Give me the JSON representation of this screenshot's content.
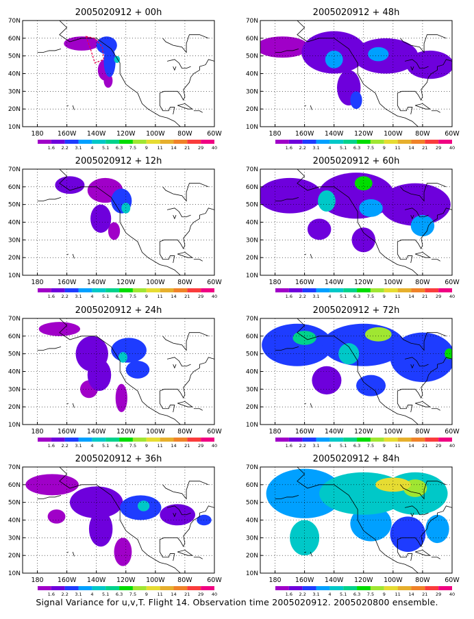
{
  "chart_data": [
    {
      "type": "heatmap",
      "title": "2005020912 + 00h",
      "ylim": [
        10,
        70
      ],
      "xlim": [
        -190,
        -60
      ],
      "y_ticks": [
        "10N",
        "20N",
        "30N",
        "40N",
        "50N",
        "60N",
        "70N"
      ],
      "x_ticks": [
        "180",
        "160W",
        "140W",
        "120W",
        "100W",
        "80W",
        "60W"
      ],
      "grid": true,
      "field": [
        {
          "lon": -150,
          "lat": 57,
          "value": 1.6,
          "rx": 12,
          "ry": 4
        },
        {
          "lon": -133,
          "lat": 56,
          "value": 3.1,
          "rx": 7,
          "ry": 5
        },
        {
          "lon": -131,
          "lat": 47,
          "value": 3.1,
          "rx": 4,
          "ry": 9
        },
        {
          "lon": -134,
          "lat": 42,
          "value": 1.6,
          "rx": 5,
          "ry": 6
        },
        {
          "lon": -132,
          "lat": 36,
          "value": 1.6,
          "rx": 3,
          "ry": 4
        },
        {
          "lon": -126,
          "lat": 48,
          "value": 5.1,
          "rx": 2,
          "ry": 2
        }
      ],
      "observation_region": {
        "color": "#e8004c",
        "points": [
          [
            -147,
            61
          ],
          [
            -141,
            60
          ],
          [
            -136,
            55
          ],
          [
            -135,
            48
          ],
          [
            -141,
            46
          ],
          [
            -144,
            54
          ]
        ]
      }
    },
    {
      "type": "heatmap",
      "title": "2005020912 + 12h",
      "ylim": [
        10,
        70
      ],
      "xlim": [
        -190,
        -60
      ],
      "y_ticks": [
        "10N",
        "20N",
        "30N",
        "40N",
        "50N",
        "60N",
        "70N"
      ],
      "x_ticks": [
        "180",
        "160W",
        "140W",
        "120W",
        "100W",
        "80W",
        "60W"
      ],
      "grid": true,
      "field": [
        {
          "lon": -158,
          "lat": 61,
          "value": 2.2,
          "rx": 10,
          "ry": 5
        },
        {
          "lon": -134,
          "lat": 58,
          "value": 1.6,
          "rx": 12,
          "ry": 7
        },
        {
          "lon": -123,
          "lat": 52,
          "value": 3.1,
          "rx": 7,
          "ry": 7
        },
        {
          "lon": -137,
          "lat": 42,
          "value": 2.2,
          "rx": 7,
          "ry": 8
        },
        {
          "lon": -128,
          "lat": 35,
          "value": 1.6,
          "rx": 4,
          "ry": 5
        },
        {
          "lon": -120,
          "lat": 48,
          "value": 5.1,
          "rx": 3,
          "ry": 3
        }
      ]
    },
    {
      "type": "heatmap",
      "title": "2005020912 + 24h",
      "ylim": [
        10,
        70
      ],
      "xlim": [
        -190,
        -60
      ],
      "y_ticks": [
        "10N",
        "20N",
        "30N",
        "40N",
        "50N",
        "60N",
        "70N"
      ],
      "x_ticks": [
        "180",
        "160W",
        "140W",
        "120W",
        "100W",
        "80W",
        "60W"
      ],
      "grid": true,
      "field": [
        {
          "lon": -165,
          "lat": 64,
          "value": 1.6,
          "rx": 14,
          "ry": 4
        },
        {
          "lon": -143,
          "lat": 50,
          "value": 2.2,
          "rx": 11,
          "ry": 10
        },
        {
          "lon": -118,
          "lat": 52,
          "value": 3.1,
          "rx": 12,
          "ry": 7
        },
        {
          "lon": -138,
          "lat": 38,
          "value": 2.2,
          "rx": 8,
          "ry": 9
        },
        {
          "lon": -112,
          "lat": 41,
          "value": 3.1,
          "rx": 8,
          "ry": 5
        },
        {
          "lon": -123,
          "lat": 25,
          "value": 1.6,
          "rx": 4,
          "ry": 8
        },
        {
          "lon": -145,
          "lat": 30,
          "value": 1.6,
          "rx": 6,
          "ry": 5
        },
        {
          "lon": -122,
          "lat": 48,
          "value": 5.1,
          "rx": 3,
          "ry": 3
        }
      ]
    },
    {
      "type": "heatmap",
      "title": "2005020912 + 36h",
      "ylim": [
        10,
        70
      ],
      "xlim": [
        -190,
        -60
      ],
      "y_ticks": [
        "10N",
        "20N",
        "30N",
        "40N",
        "50N",
        "60N",
        "70N"
      ],
      "x_ticks": [
        "180",
        "160W",
        "140W",
        "120W",
        "100W",
        "80W",
        "60W"
      ],
      "grid": true,
      "field": [
        {
          "lon": -170,
          "lat": 60,
          "value": 1.6,
          "rx": 18,
          "ry": 6
        },
        {
          "lon": -140,
          "lat": 50,
          "value": 2.2,
          "rx": 18,
          "ry": 9
        },
        {
          "lon": -110,
          "lat": 47,
          "value": 3.1,
          "rx": 14,
          "ry": 7
        },
        {
          "lon": -85,
          "lat": 43,
          "value": 2.2,
          "rx": 12,
          "ry": 6
        },
        {
          "lon": -137,
          "lat": 35,
          "value": 2.2,
          "rx": 8,
          "ry": 10
        },
        {
          "lon": -122,
          "lat": 22,
          "value": 1.6,
          "rx": 6,
          "ry": 8
        },
        {
          "lon": -167,
          "lat": 42,
          "value": 1.6,
          "rx": 6,
          "ry": 4
        },
        {
          "lon": -108,
          "lat": 48,
          "value": 5.1,
          "rx": 4,
          "ry": 3
        },
        {
          "lon": -67,
          "lat": 40,
          "value": 3.1,
          "rx": 5,
          "ry": 3
        }
      ]
    },
    {
      "type": "heatmap",
      "title": "2005020912 + 48h",
      "ylim": [
        10,
        70
      ],
      "xlim": [
        -190,
        -60
      ],
      "y_ticks": [
        "10N",
        "20N",
        "30N",
        "40N",
        "50N",
        "60N",
        "70N"
      ],
      "x_ticks": [
        "180",
        "160W",
        "140W",
        "120W",
        "100W",
        "80W",
        "60W"
      ],
      "grid": true,
      "field": [
        {
          "lon": -175,
          "lat": 55,
          "value": 1.6,
          "rx": 18,
          "ry": 6
        },
        {
          "lon": -140,
          "lat": 52,
          "value": 2.2,
          "rx": 22,
          "ry": 12
        },
        {
          "lon": -105,
          "lat": 50,
          "value": 2.2,
          "rx": 22,
          "ry": 10
        },
        {
          "lon": -75,
          "lat": 45,
          "value": 2.2,
          "rx": 16,
          "ry": 8
        },
        {
          "lon": -130,
          "lat": 32,
          "value": 2.2,
          "rx": 8,
          "ry": 10
        },
        {
          "lon": -140,
          "lat": 48,
          "value": 4.0,
          "rx": 6,
          "ry": 5
        },
        {
          "lon": -110,
          "lat": 51,
          "value": 4.0,
          "rx": 7,
          "ry": 4
        },
        {
          "lon": -125,
          "lat": 25,
          "value": 3.1,
          "rx": 4,
          "ry": 5
        }
      ]
    },
    {
      "type": "heatmap",
      "title": "2005020912 + 60h",
      "ylim": [
        10,
        70
      ],
      "xlim": [
        -190,
        -60
      ],
      "y_ticks": [
        "10N",
        "20N",
        "30N",
        "40N",
        "50N",
        "60N",
        "70N"
      ],
      "x_ticks": [
        "180",
        "160W",
        "140W",
        "120W",
        "100W",
        "80W",
        "60W"
      ],
      "grid": true,
      "field": [
        {
          "lon": -170,
          "lat": 55,
          "value": 2.2,
          "rx": 22,
          "ry": 10
        },
        {
          "lon": -125,
          "lat": 55,
          "value": 2.2,
          "rx": 26,
          "ry": 13
        },
        {
          "lon": -85,
          "lat": 50,
          "value": 2.2,
          "rx": 24,
          "ry": 12
        },
        {
          "lon": -145,
          "lat": 52,
          "value": 5.1,
          "rx": 6,
          "ry": 6
        },
        {
          "lon": -120,
          "lat": 62,
          "value": 7.5,
          "rx": 6,
          "ry": 4
        },
        {
          "lon": -115,
          "lat": 48,
          "value": 4.0,
          "rx": 8,
          "ry": 5
        },
        {
          "lon": -80,
          "lat": 38,
          "value": 4.0,
          "rx": 8,
          "ry": 6
        },
        {
          "lon": -150,
          "lat": 36,
          "value": 2.2,
          "rx": 8,
          "ry": 6
        },
        {
          "lon": -120,
          "lat": 30,
          "value": 2.2,
          "rx": 8,
          "ry": 7
        }
      ]
    },
    {
      "type": "heatmap",
      "title": "2005020912 + 72h",
      "ylim": [
        10,
        70
      ],
      "xlim": [
        -190,
        -60
      ],
      "y_ticks": [
        "10N",
        "20N",
        "30N",
        "40N",
        "50N",
        "60N",
        "70N"
      ],
      "x_ticks": [
        "180",
        "160W",
        "140W",
        "120W",
        "100W",
        "80W",
        "60W"
      ],
      "grid": true,
      "field": [
        {
          "lon": -165,
          "lat": 55,
          "value": 3.1,
          "rx": 24,
          "ry": 12
        },
        {
          "lon": -120,
          "lat": 55,
          "value": 3.1,
          "rx": 28,
          "ry": 12
        },
        {
          "lon": -80,
          "lat": 48,
          "value": 3.1,
          "rx": 22,
          "ry": 14
        },
        {
          "lon": -110,
          "lat": 61,
          "value": 9.0,
          "rx": 9,
          "ry": 4
        },
        {
          "lon": -160,
          "lat": 59,
          "value": 6.3,
          "rx": 8,
          "ry": 4
        },
        {
          "lon": -130,
          "lat": 50,
          "value": 5.1,
          "rx": 7,
          "ry": 6
        },
        {
          "lon": -145,
          "lat": 35,
          "value": 2.2,
          "rx": 10,
          "ry": 8
        },
        {
          "lon": -115,
          "lat": 32,
          "value": 3.1,
          "rx": 10,
          "ry": 6
        },
        {
          "lon": -62,
          "lat": 50,
          "value": 7.5,
          "rx": 3,
          "ry": 3
        }
      ]
    },
    {
      "type": "heatmap",
      "title": "2005020912 + 84h",
      "ylim": [
        10,
        70
      ],
      "xlim": [
        -190,
        -60
      ],
      "y_ticks": [
        "10N",
        "20N",
        "30N",
        "40N",
        "50N",
        "60N",
        "70N"
      ],
      "x_ticks": [
        "180",
        "160W",
        "140W",
        "120W",
        "100W",
        "80W",
        "60W"
      ],
      "grid": true,
      "field": [
        {
          "lon": -160,
          "lat": 55,
          "value": 4.0,
          "rx": 26,
          "ry": 14
        },
        {
          "lon": -120,
          "lat": 55,
          "value": 5.1,
          "rx": 30,
          "ry": 12
        },
        {
          "lon": -85,
          "lat": 55,
          "value": 5.1,
          "rx": 22,
          "ry": 12
        },
        {
          "lon": -100,
          "lat": 60,
          "value": 11,
          "rx": 12,
          "ry": 4
        },
        {
          "lon": -85,
          "lat": 58,
          "value": 9.0,
          "rx": 8,
          "ry": 5
        },
        {
          "lon": -160,
          "lat": 30,
          "value": 5.1,
          "rx": 10,
          "ry": 10
        },
        {
          "lon": -115,
          "lat": 38,
          "value": 4.0,
          "rx": 14,
          "ry": 10
        },
        {
          "lon": -90,
          "lat": 32,
          "value": 3.1,
          "rx": 12,
          "ry": 10
        },
        {
          "lon": -70,
          "lat": 35,
          "value": 4.0,
          "rx": 8,
          "ry": 8
        }
      ]
    }
  ],
  "legend": {
    "labels": [
      "1.6",
      "2.2",
      "3.1",
      "4",
      "5.1",
      "6.3",
      "7.5",
      "9",
      "11",
      "14",
      "21",
      "29",
      "40"
    ],
    "colors": [
      "#a000c8",
      "#6e00dc",
      "#1e3cff",
      "#00a0ff",
      "#00c8c8",
      "#00d28c",
      "#00dc00",
      "#a0e632",
      "#e6dc32",
      "#e6af2d",
      "#f08228",
      "#fa3c3c",
      "#f00082"
    ]
  },
  "colors": {
    "ocean": "#ffffff",
    "land_outline": "#000000",
    "grid": "#000000",
    "region_outline": "#e8004c"
  },
  "caption": "Signal Variance for u,v,T. Flight 14. Observation time 2005020912. 2005020800 ensemble."
}
